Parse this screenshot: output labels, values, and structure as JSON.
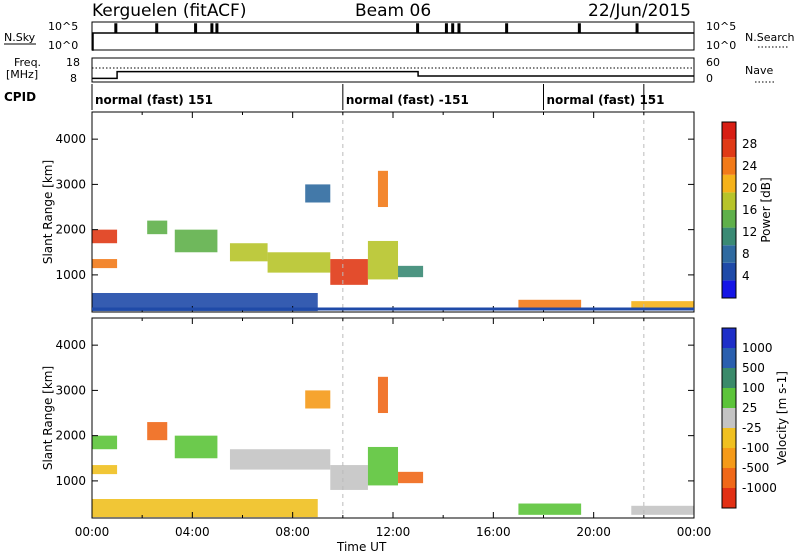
{
  "header": {
    "station": "Kerguelen (fitACF)",
    "beam": "Beam 06",
    "date": "22/Jun/2015"
  },
  "status_panel": {
    "left_labels": [
      "N.Sky",
      "Freq.",
      "[MHz]",
      "CPID"
    ],
    "right_labels": [
      "N.Search",
      "Nave"
    ],
    "nsky_ticks": [
      "10^5",
      "10^0"
    ],
    "nsearch_ticks": [
      "10^5",
      "10^0"
    ],
    "freq_ticks": [
      "18",
      "8"
    ],
    "nave_ticks": [
      "60",
      "0"
    ],
    "cpid_segments": [
      {
        "label": "normal (fast) 151",
        "start_hour": 0.0,
        "end_hour": 10.0
      },
      {
        "label": "normal (fast) -151",
        "start_hour": 10.0,
        "end_hour": 18.0
      },
      {
        "label": "normal (fast) 151",
        "start_hour": 18.0,
        "end_hour": 22.0
      }
    ],
    "freq_steps": [
      {
        "start_hour": 0.0,
        "end_hour": 1.0,
        "mhz": 9.5
      },
      {
        "start_hour": 1.0,
        "end_hour": 13.0,
        "mhz": 12.3
      },
      {
        "start_hour": 13.0,
        "end_hour": 24.0,
        "mhz": 10.5
      }
    ]
  },
  "chart_data": [
    {
      "type": "heatmap",
      "quantity": "power",
      "ylabel": "Slant Range [km]",
      "xlabel": "Time UT",
      "xlim": [
        0,
        24
      ],
      "ylim": [
        180,
        4600
      ],
      "x_ticks": [
        "00:00",
        "04:00",
        "08:00",
        "12:00",
        "16:00",
        "20:00",
        "00:00"
      ],
      "y_ticks": [
        1000,
        2000,
        3000,
        4000
      ],
      "colorbar": {
        "label": "Power [dB]",
        "range": [
          0,
          32
        ],
        "ticks": [
          4,
          8,
          12,
          16,
          20,
          24,
          28
        ],
        "colors": [
          "#1515e6",
          "#1f4aa8",
          "#2f6aa0",
          "#3a8a74",
          "#5fb04a",
          "#b7c42a",
          "#f5b21a",
          "#f27a18",
          "#e03a16",
          "#d81e14"
        ]
      },
      "regions": [
        {
          "t0": 0.0,
          "t1": 1.0,
          "r0": 1700,
          "r1": 2000,
          "v": 26
        },
        {
          "t0": 0.0,
          "t1": 1.0,
          "r0": 1150,
          "r1": 1350,
          "v": 24
        },
        {
          "t0": 2.2,
          "t1": 3.0,
          "r0": 1900,
          "r1": 2200,
          "v": 14
        },
        {
          "t0": 3.3,
          "t1": 5.0,
          "r0": 1500,
          "r1": 2000,
          "v": 14
        },
        {
          "t0": 5.5,
          "t1": 7.0,
          "r0": 1300,
          "r1": 1700,
          "v": 16
        },
        {
          "t0": 7.0,
          "t1": 9.5,
          "r0": 1050,
          "r1": 1500,
          "v": 18
        },
        {
          "t0": 9.5,
          "t1": 11.0,
          "r0": 780,
          "r1": 1350,
          "v": 26
        },
        {
          "t0": 11.0,
          "t1": 12.2,
          "r0": 900,
          "r1": 1750,
          "v": 18
        },
        {
          "t0": 11.4,
          "t1": 11.8,
          "r0": 2500,
          "r1": 3300,
          "v": 24
        },
        {
          "t0": 12.2,
          "t1": 13.2,
          "r0": 950,
          "r1": 1200,
          "v": 12
        },
        {
          "t0": 8.5,
          "t1": 9.5,
          "r0": 2600,
          "r1": 3000,
          "v": 8
        },
        {
          "t0": 17.0,
          "t1": 19.5,
          "r0": 250,
          "r1": 450,
          "v": 24
        },
        {
          "t0": 21.5,
          "t1": 24.0,
          "r0": 250,
          "r1": 420,
          "v": 22
        },
        {
          "t0": 0.0,
          "t1": 9.0,
          "r0": 200,
          "r1": 600,
          "v": 6
        }
      ]
    },
    {
      "type": "heatmap",
      "quantity": "velocity",
      "ylabel": "Slant Range [km]",
      "xlabel": "Time UT",
      "xlim": [
        0,
        24
      ],
      "ylim": [
        180,
        4600
      ],
      "x_ticks": [
        "00:00",
        "04:00",
        "08:00",
        "12:00",
        "16:00",
        "20:00",
        "00:00"
      ],
      "y_ticks": [
        1000,
        2000,
        3000,
        4000
      ],
      "colorbar": {
        "label": "Velocity [m s-1]",
        "ticks": [
          "1000",
          "500",
          "100",
          "25",
          "-25",
          "-100",
          "-500",
          "-1000"
        ],
        "colors": [
          "#1e2fc8",
          "#2a5fae",
          "#3a8a6a",
          "#5cc43a",
          "#c4c4c4",
          "#f0c020",
          "#f59a18",
          "#f06818",
          "#e23014"
        ]
      },
      "regions": [
        {
          "t0": 0.0,
          "t1": 1.0,
          "r0": 1700,
          "r1": 2000,
          "color": "#5cc43a"
        },
        {
          "t0": 0.0,
          "t1": 1.0,
          "r0": 1150,
          "r1": 1350,
          "color": "#f0c020"
        },
        {
          "t0": 2.2,
          "t1": 3.0,
          "r0": 1900,
          "r1": 2300,
          "color": "#f06818"
        },
        {
          "t0": 3.3,
          "t1": 5.0,
          "r0": 1500,
          "r1": 2000,
          "color": "#5cc43a"
        },
        {
          "t0": 5.5,
          "t1": 9.5,
          "r0": 1250,
          "r1": 1700,
          "color": "#c4c4c4"
        },
        {
          "t0": 9.5,
          "t1": 11.0,
          "r0": 800,
          "r1": 1350,
          "color": "#c4c4c4"
        },
        {
          "t0": 11.0,
          "t1": 12.2,
          "r0": 900,
          "r1": 1750,
          "color": "#5cc43a"
        },
        {
          "t0": 11.4,
          "t1": 11.8,
          "r0": 2500,
          "r1": 3300,
          "color": "#f06818"
        },
        {
          "t0": 8.5,
          "t1": 9.5,
          "r0": 2600,
          "r1": 3000,
          "color": "#f59a18"
        },
        {
          "t0": 12.2,
          "t1": 13.2,
          "r0": 950,
          "r1": 1200,
          "color": "#f06818"
        },
        {
          "t0": 17.0,
          "t1": 19.5,
          "r0": 250,
          "r1": 500,
          "color": "#5cc43a"
        },
        {
          "t0": 21.5,
          "t1": 24.0,
          "r0": 250,
          "r1": 450,
          "color": "#c4c4c4"
        },
        {
          "t0": 0.0,
          "t1": 9.0,
          "r0": 200,
          "r1": 600,
          "color": "#f0c020"
        }
      ]
    }
  ]
}
